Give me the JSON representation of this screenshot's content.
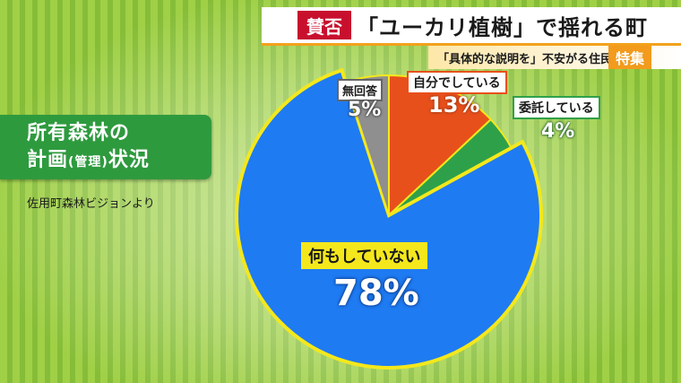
{
  "header": {
    "badge": "賛否",
    "title": "「ユーカリ植樹」で揺れる町",
    "subtitle": "「具体的な説明を」不安がる住民",
    "tag": "特集"
  },
  "left_panel": {
    "title_line1": "所有森林の",
    "title_line2a": "計画",
    "title_line2b": "(管理)",
    "title_line2c": "状況",
    "source": "佐用町森林ビジョンより"
  },
  "colors": {
    "blue": "#1f7bf2",
    "orange": "#e8501b",
    "green": "#2fa04a",
    "gray": "#8f8f8f",
    "outline": "#f4e81c"
  },
  "chart_data": {
    "type": "pie",
    "slices": [
      {
        "label": "自分でしている",
        "value": 13,
        "display": "13%",
        "color": "#e8501b"
      },
      {
        "label": "委託している",
        "value": 4,
        "display": "4%",
        "color": "#2fa04a"
      },
      {
        "label": "何もしていない",
        "value": 78,
        "display": "78%",
        "color": "#1f7bf2"
      },
      {
        "label": "無回答",
        "value": 5,
        "display": "5%",
        "color": "#8f8f8f"
      }
    ],
    "start_angle_deg": 0,
    "direction": "clockwise"
  }
}
